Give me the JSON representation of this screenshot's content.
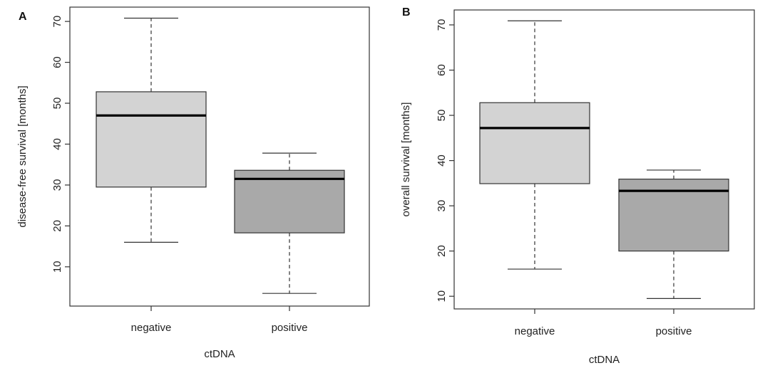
{
  "chart_data": [
    {
      "type": "boxplot",
      "panel_label": "A",
      "xlabel": "ctDNA",
      "ylabel": "disease-free survival [months]",
      "categories": [
        "negative",
        "positive"
      ],
      "yticks": [
        10,
        20,
        30,
        40,
        50,
        60,
        70
      ],
      "ylim": [
        0.4,
        73.5
      ],
      "boxes": [
        {
          "category": "negative",
          "whisker_low": 16,
          "q1": 29.5,
          "median": 47,
          "q3": 52.8,
          "whisker_high": 70.8,
          "fill": "#d3d3d3"
        },
        {
          "category": "positive",
          "whisker_low": 3.5,
          "q1": 18.3,
          "median": 31.5,
          "q3": 33.6,
          "whisker_high": 37.8,
          "fill": "#a9a9a9"
        }
      ],
      "grid": false,
      "legend": "none"
    },
    {
      "type": "boxplot",
      "panel_label": "B",
      "xlabel": "ctDNA",
      "ylabel": "overall survival [months]",
      "categories": [
        "negative",
        "positive"
      ],
      "yticks": [
        10,
        20,
        30,
        40,
        50,
        60,
        70
      ],
      "ylim": [
        7.2,
        73.3
      ],
      "boxes": [
        {
          "category": "negative",
          "whisker_low": 16,
          "q1": 34.9,
          "median": 47.2,
          "q3": 52.8,
          "whisker_high": 70.9,
          "fill": "#d3d3d3"
        },
        {
          "category": "positive",
          "whisker_low": 9.5,
          "q1": 20,
          "median": 33.3,
          "q3": 35.9,
          "whisker_high": 37.9,
          "fill": "#a9a9a9"
        }
      ],
      "grid": false,
      "legend": "none"
    }
  ]
}
